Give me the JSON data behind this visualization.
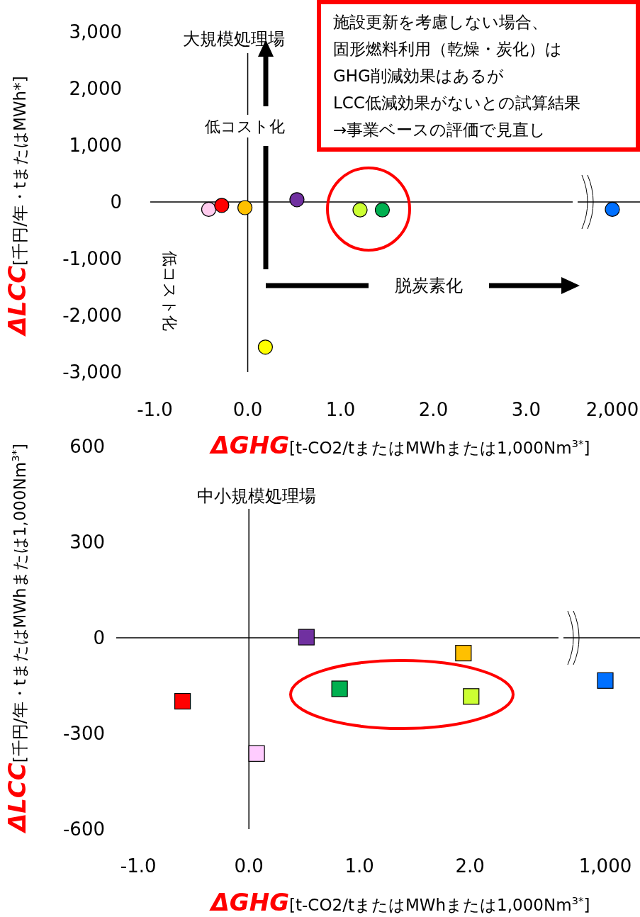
{
  "chart_data": [
    {
      "type": "scatter",
      "title": "大規模処理場",
      "xlabel": "ΔGHG[t-CO2/tまたはMWhまたは1,000Nm$^{3*}$]",
      "ylabel": "ΔLCC[千円/年・tまたはMWh*]",
      "xlim": [
        -1.05,
        3.5
      ],
      "ylim": [
        -3000,
        3000
      ],
      "xticks": [
        {
          "value": -1,
          "label": "-1.0"
        },
        {
          "value": 0,
          "label": "0.0"
        },
        {
          "value": 1,
          "label": "1.0"
        },
        {
          "value": 2,
          "label": "2.0"
        },
        {
          "value": 3,
          "label": "3.0"
        }
      ],
      "yticks": [
        {
          "value": 3000,
          "label": "3,000"
        },
        {
          "value": 2000,
          "label": "2,000"
        },
        {
          "value": 1000,
          "label": "1,000"
        },
        0,
        {
          "value": -1000,
          "label": "-1,000"
        },
        {
          "value": -2000,
          "label": "-2,000"
        },
        {
          "value": -3000,
          "label": "-3,000"
        }
      ],
      "grid": false,
      "marker": "circle",
      "ref_lines": [
        {
          "axis": "y",
          "value": 0
        },
        {
          "axis": "x",
          "value": 0
        }
      ],
      "series": [
        {
          "x": [
            -0.42,
            -0.28,
            -0.03,
            0.53,
            1.21,
            1.45,
            0.19
          ],
          "values": [
            -130,
            -60,
            -100,
            40,
            -140,
            -140,
            -2560
          ],
          "colors": [
            "#ffccee",
            "#ff0000",
            "#ffc000",
            "#7030a0",
            "#ccff33",
            "#00b050",
            "#ffff00"
          ]
        }
      ],
      "annotations": [
        "低コスト化",
        "低コスト化",
        "脱炭素化",
        "施設更新を考慮しない場合、",
        "固形燃料利用（乾燥・炭化）は",
        "GHG削減効果はあるが",
        "LCC低減効果がないとの試算結果",
        "→事業ベースの評価で見直し"
      ]
    },
    {
      "type": "scatter",
      "categories": [
        "2,000"
      ],
      "ylim": [
        -3000,
        3000
      ],
      "tick_labels": "x",
      "grid": false,
      "marker": "circle",
      "ref_lines": [
        {
          "axis": "y",
          "value": 0
        }
      ],
      "series": [
        {
          "values": [
            -130
          ],
          "colors": [
            "#0070ff"
          ]
        }
      ]
    },
    {
      "type": "scatter",
      "title": "中小規模処理場",
      "xlabel": "ΔGHG[t-CO2/tまたはMWhまたは1,000Nm$^{3*}$]",
      "ylabel": "ΔLCC[千円/年・tまたはMWhまたは1,000Nm$^{3*}$]",
      "xlim": [
        -1.2,
        2.8
      ],
      "ylim": [
        -600,
        600
      ],
      "xticks": [
        {
          "value": -1,
          "label": "-1.0"
        },
        {
          "value": 0,
          "label": "0.0"
        },
        {
          "value": 1,
          "label": "1.0"
        },
        {
          "value": 2,
          "label": "2.0"
        }
      ],
      "yticks": [
        600,
        300,
        0,
        -300,
        -600
      ],
      "grid": false,
      "marker": "square",
      "ref_lines": [
        {
          "axis": "y",
          "value": 0
        },
        {
          "axis": "x",
          "value": 0
        }
      ],
      "series": [
        {
          "x": [
            -0.6,
            0.07,
            0.52,
            0.82,
            2.01,
            1.94
          ],
          "values": [
            -199,
            -363,
            2,
            -160,
            -184,
            -48
          ],
          "colors": [
            "#ff0000",
            "#ffccff",
            "#7030a0",
            "#00b050",
            "#ccff33",
            "#ffc000"
          ]
        }
      ]
    },
    {
      "type": "scatter",
      "categories": [
        "1,000"
      ],
      "ylim": [
        -600,
        600
      ],
      "tick_labels": "x",
      "grid": false,
      "marker": "square",
      "ref_lines": [
        {
          "axis": "y",
          "value": 0
        }
      ],
      "series": [
        {
          "values": [
            -134
          ],
          "colors": [
            "#0070ff"
          ]
        }
      ]
    }
  ]
}
